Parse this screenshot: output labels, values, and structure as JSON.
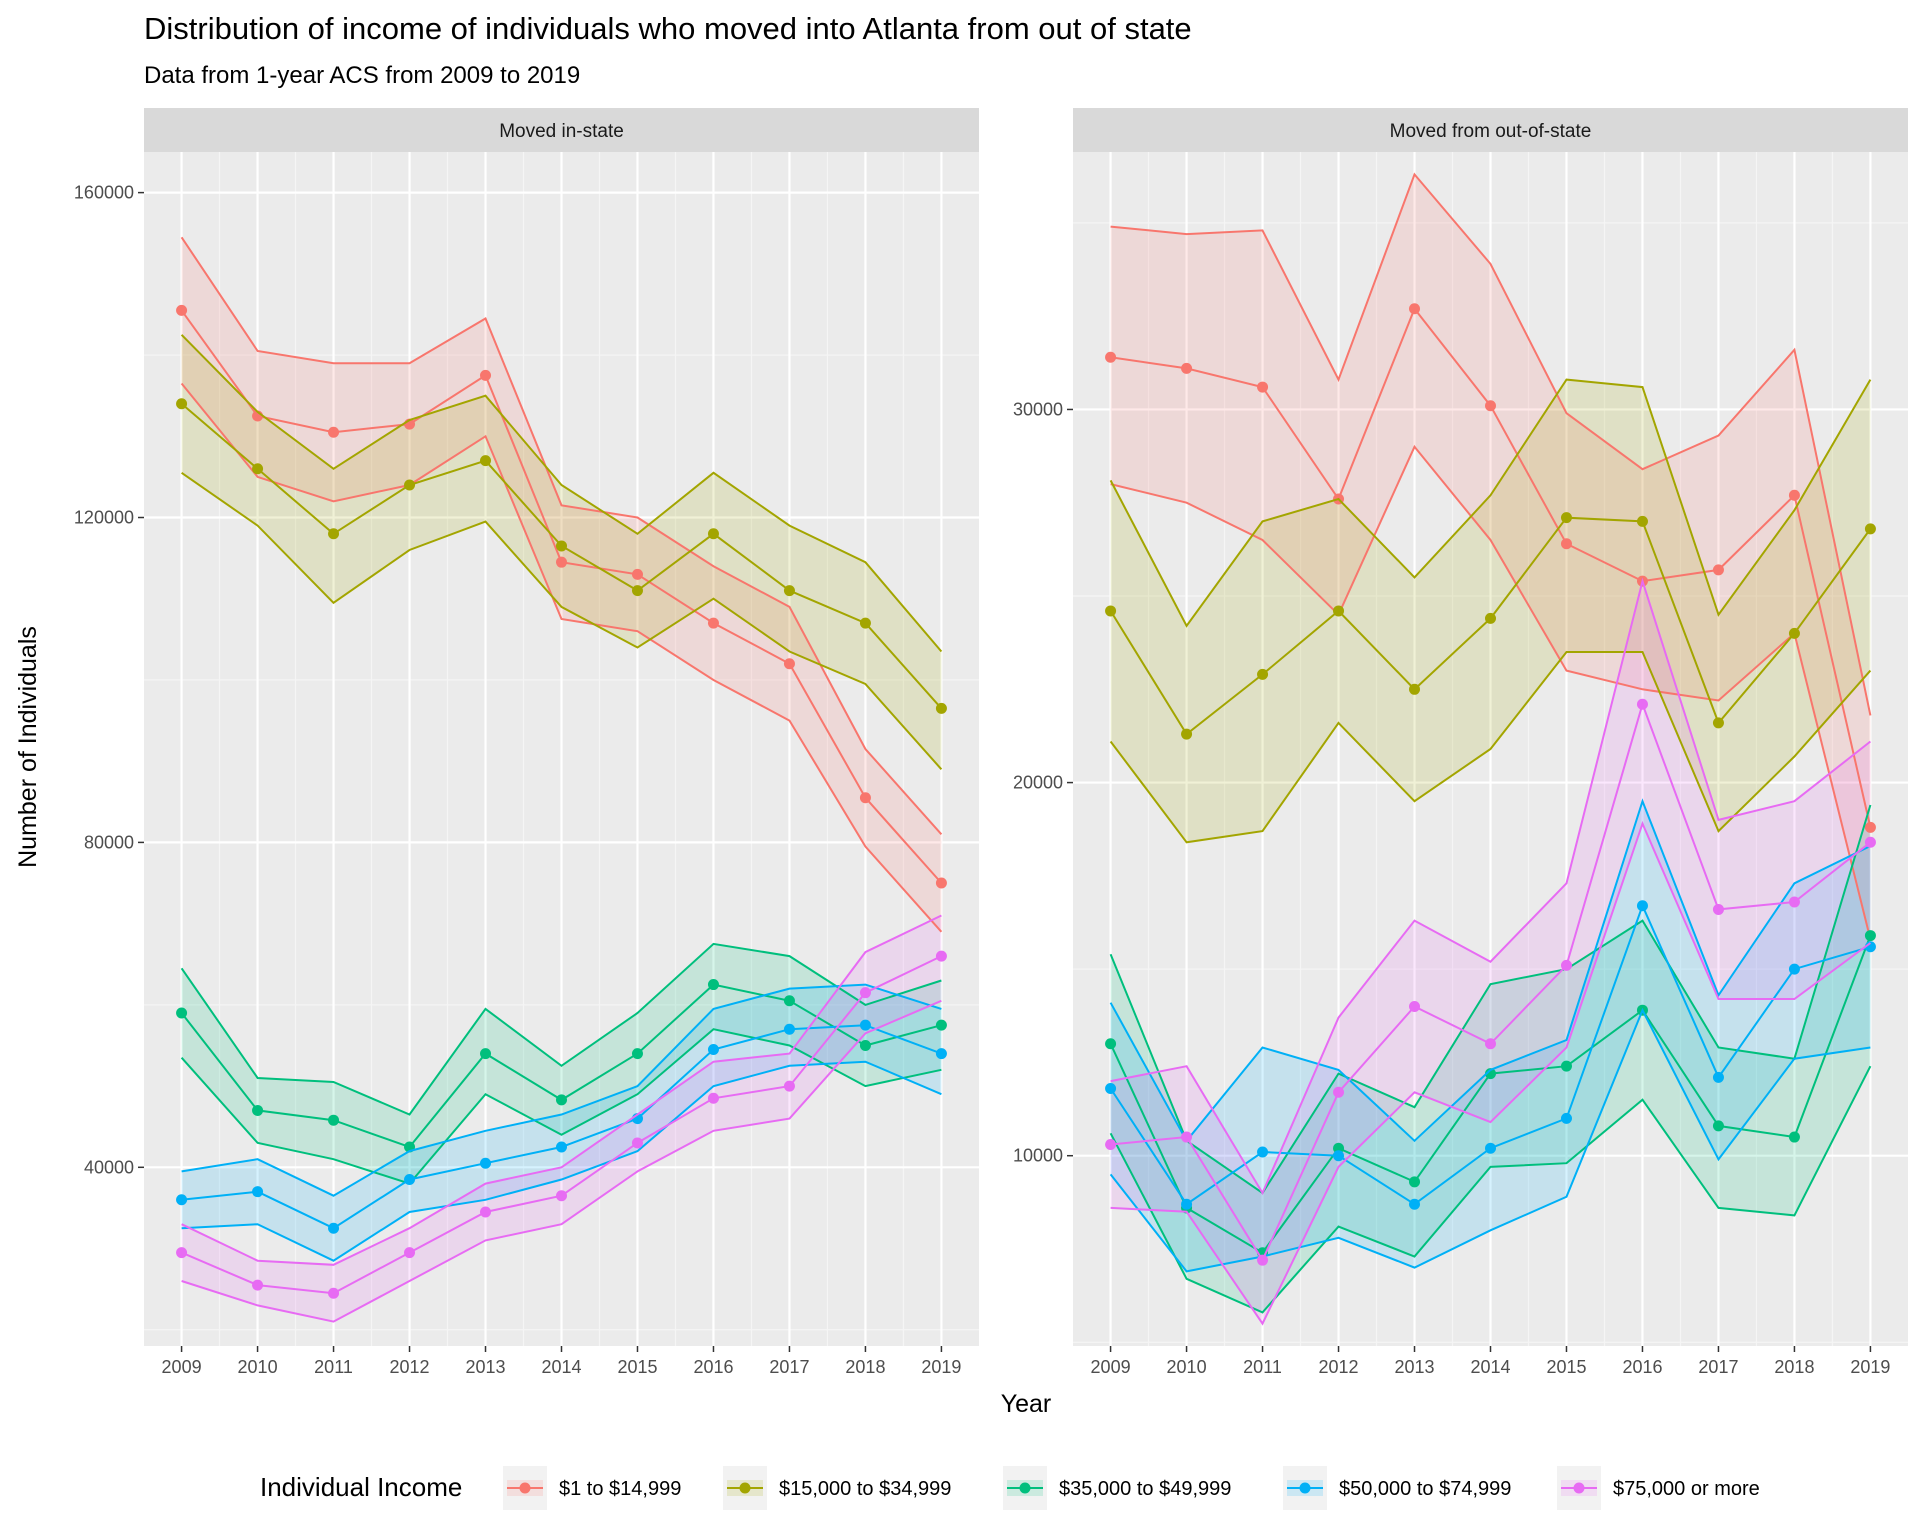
{
  "chart_data": {
    "type": "line",
    "title": "Distribution of income of individuals who moved into Atlanta from out of state",
    "subtitle": "Data from 1-year ACS from 2009 to 2019",
    "xlabel": "Year",
    "ylabel": "Number of Individuals",
    "x": [
      2009,
      2010,
      2011,
      2012,
      2013,
      2014,
      2015,
      2016,
      2017,
      2018,
      2019
    ],
    "legend": {
      "title": "Individual Income",
      "position": "bottom"
    },
    "grid": true,
    "facets": [
      {
        "name": "Moved in-state",
        "ylim": [
          18000,
          165000
        ],
        "yticks": [
          40000,
          80000,
          120000,
          160000
        ],
        "yticklabels": [
          "40000",
          "80000",
          "120000",
          "160000"
        ],
        "series": [
          {
            "name": "$1 to $14,999",
            "color": "#F8766D",
            "values": [
              145500,
              132500,
              130500,
              131500,
              137500,
              114500,
              113000,
              107000,
              102000,
              85500,
              75000
            ],
            "upper": [
              154500,
              140500,
              139000,
              139000,
              144500,
              121500,
              120000,
              114000,
              109000,
              91500,
              81000
            ],
            "lower": [
              136500,
              125000,
              122000,
              124000,
              130000,
              107500,
              106000,
              100000,
              95000,
              79500,
              69000
            ]
          },
          {
            "name": "$15,000 to $34,999",
            "color": "#A3A500",
            "values": [
              134000,
              126000,
              118000,
              124000,
              127000,
              116500,
              111000,
              118000,
              111000,
              107000,
              96500
            ],
            "upper": [
              142500,
              133000,
              126000,
              132000,
              135000,
              124000,
              118000,
              125500,
              119000,
              114500,
              103500
            ],
            "lower": [
              125500,
              119000,
              109500,
              116000,
              119500,
              109000,
              104000,
              110000,
              103500,
              99500,
              89000
            ]
          },
          {
            "name": "$35,000 to $49,999",
            "color": "#00BF7D",
            "values": [
              59000,
              47000,
              45800,
              42500,
              54000,
              48300,
              54000,
              62500,
              60500,
              55000,
              57500
            ],
            "upper": [
              64500,
              51000,
              50500,
              46500,
              59500,
              52500,
              59000,
              67500,
              66000,
              60000,
              63000
            ],
            "lower": [
              53500,
              43000,
              41000,
              38000,
              49000,
              44000,
              49000,
              57000,
              55000,
              50000,
              52000
            ]
          },
          {
            "name": "$50,000 to $74,999",
            "color": "#00B0F6",
            "values": [
              36000,
              37000,
              32500,
              38500,
              40500,
              42500,
              46000,
              54500,
              57000,
              57500,
              54000
            ],
            "upper": [
              39500,
              41000,
              36500,
              42000,
              44500,
              46500,
              50000,
              59500,
              62000,
              62500,
              59500
            ],
            "lower": [
              32500,
              33000,
              28500,
              34500,
              36000,
              38500,
              42000,
              50000,
              52500,
              53000,
              49000
            ]
          },
          {
            "name": "$75,000 or more",
            "color": "#E76BF3",
            "values": [
              29500,
              25500,
              24500,
              29500,
              34500,
              36500,
              43000,
              48500,
              50000,
              61500,
              66000
            ],
            "upper": [
              33000,
              28500,
              28000,
              32500,
              38000,
              40000,
              46500,
              53000,
              54000,
              66500,
              71000
            ],
            "lower": [
              26000,
              23000,
              21000,
              26000,
              31000,
              33000,
              39500,
              44500,
              46000,
              56500,
              60500
            ]
          }
        ]
      },
      {
        "name": "Moved from out-of-state",
        "ylim": [
          4900,
          36900
        ],
        "yticks": [
          10000,
          20000,
          30000
        ],
        "yticklabels": [
          "10000",
          "20000",
          "30000"
        ],
        "series": [
          {
            "name": "$1 to $14,999",
            "color": "#F8766D",
            "values": [
              31400,
              31100,
              30600,
              27600,
              32700,
              30100,
              26400,
              25400,
              25700,
              27700,
              18800
            ],
            "upper": [
              34900,
              34700,
              34800,
              30800,
              36300,
              33900,
              29900,
              28400,
              29300,
              31600,
              21800
            ],
            "lower": [
              28000,
              27500,
              26500,
              24500,
              29000,
              26500,
              23000,
              22500,
              22200,
              24000,
              15800
            ]
          },
          {
            "name": "$15,000 to $34,999",
            "color": "#A3A500",
            "values": [
              24600,
              21300,
              22900,
              24600,
              22500,
              24400,
              27100,
              27000,
              21600,
              24000,
              26800
            ],
            "upper": [
              28100,
              24200,
              27000,
              27600,
              25500,
              27700,
              30800,
              30600,
              24500,
              27300,
              30800
            ],
            "lower": [
              21100,
              18400,
              18700,
              21600,
              19500,
              20900,
              23500,
              23500,
              18700,
              20700,
              23000
            ]
          },
          {
            "name": "$35,000 to $49,999",
            "color": "#00BF7D",
            "values": [
              13000,
              8600,
              7400,
              10200,
              9300,
              12200,
              12400,
              13900,
              10800,
              10500,
              15900
            ],
            "upper": [
              15400,
              10400,
              9000,
              12200,
              11300,
              14600,
              15000,
              16300,
              12900,
              12600,
              19400
            ],
            "lower": [
              10600,
              6700,
              5800,
              8100,
              7300,
              9700,
              9800,
              11500,
              8600,
              8400,
              12400
            ]
          },
          {
            "name": "$50,000 to $74,999",
            "color": "#00B0F6",
            "values": [
              11800,
              8700,
              10100,
              10000,
              8700,
              10200,
              11000,
              16700,
              12100,
              15000,
              15600
            ],
            "upper": [
              14100,
              10400,
              12900,
              12300,
              10400,
              12300,
              13100,
              19500,
              14300,
              17300,
              18300
            ],
            "lower": [
              9500,
              6900,
              7300,
              7800,
              7000,
              8000,
              8900,
              13900,
              9900,
              12600,
              12900
            ]
          },
          {
            "name": "$75,000 or more",
            "color": "#E76BF3",
            "values": [
              10300,
              10500,
              7200,
              11700,
              14000,
              13000,
              15100,
              22100,
              16600,
              16800,
              18400
            ],
            "upper": [
              12000,
              12400,
              9000,
              13700,
              16300,
              15200,
              17300,
              25400,
              19000,
              19500,
              21100
            ],
            "lower": [
              8600,
              8500,
              5500,
              9700,
              11700,
              10900,
              12900,
              18900,
              14200,
              14200,
              15700
            ]
          }
        ]
      }
    ]
  }
}
